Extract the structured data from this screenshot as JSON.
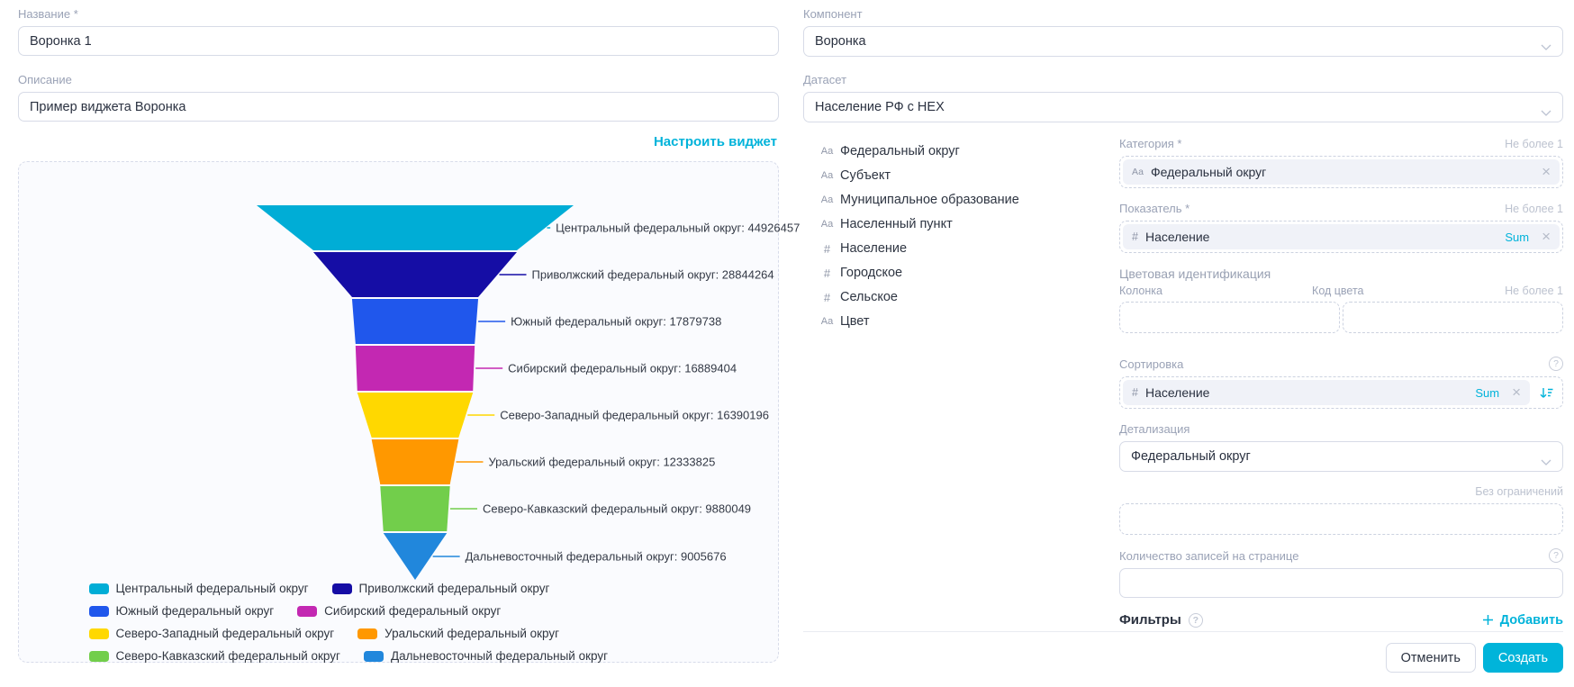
{
  "accent": "#00b3da",
  "left": {
    "name_label": "Название *",
    "name_value": "Воронка 1",
    "description_label": "Описание",
    "description_value": "Пример виджета Воронка",
    "configure_link": "Настроить виджет"
  },
  "right": {
    "component_label": "Компонент",
    "component_value": "Воронка",
    "dataset_label": "Датасет",
    "dataset_value": "Население РФ с НЕХ",
    "fields": [
      {
        "icon": "Аа",
        "type": "string",
        "name": "Федеральный округ"
      },
      {
        "icon": "Аа",
        "type": "string",
        "name": "Субъект"
      },
      {
        "icon": "Аа",
        "type": "string",
        "name": "Муниципальное образование"
      },
      {
        "icon": "Аа",
        "type": "string",
        "name": "Населенный пункт"
      },
      {
        "icon": "#",
        "type": "number",
        "name": "Население"
      },
      {
        "icon": "#",
        "type": "number",
        "name": "Городское"
      },
      {
        "icon": "#",
        "type": "number",
        "name": "Сельское"
      },
      {
        "icon": "Аа",
        "type": "string",
        "name": "Цвет"
      }
    ],
    "category": {
      "label": "Категория *",
      "limit": "Не более 1",
      "chip": {
        "icon": "Аа",
        "name": "Федеральный округ"
      }
    },
    "measure": {
      "label": "Показатель *",
      "limit": "Не более 1",
      "chip": {
        "icon": "#",
        "name": "Население",
        "agg": "Sum"
      }
    },
    "color_ident": {
      "label": "Цветовая идентификация",
      "column_label": "Колонка",
      "code_label": "Код цвета",
      "limit": "Не более 1"
    },
    "sorting": {
      "label": "Сортировка",
      "chip": {
        "icon": "#",
        "name": "Население",
        "agg": "Sum"
      }
    },
    "detail": {
      "label": "Детализация",
      "value": "Федеральный округ"
    },
    "no_limit_label": "Без ограничений",
    "page_size_label": "Количество записей на странице",
    "page_size_value": "",
    "filters_label": "Фильтры",
    "add_label": "Добавить",
    "cancel_label": "Отменить",
    "create_label": "Создать"
  },
  "chart_data": {
    "type": "funnel",
    "categories": [
      "Центральный федеральный округ",
      "Приволжский федеральный округ",
      "Южный федеральный округ",
      "Сибирский федеральный округ",
      "Северо-Западный федеральный округ",
      "Уральский федеральный округ",
      "Северо-Кавказский федеральный округ",
      "Дальневосточный федеральный округ"
    ],
    "values": [
      44926457,
      28844264,
      17879738,
      16889404,
      16390196,
      12333825,
      9880049,
      9005676
    ],
    "colors": [
      "#00add6",
      "#150da5",
      "#2057ec",
      "#c328b2",
      "#ffd800",
      "#ff9800",
      "#72ce4b",
      "#2187dc"
    ],
    "label_format": "{name}: {value}",
    "legend_position": "bottom",
    "title": "",
    "xlabel": "",
    "ylabel": ""
  }
}
